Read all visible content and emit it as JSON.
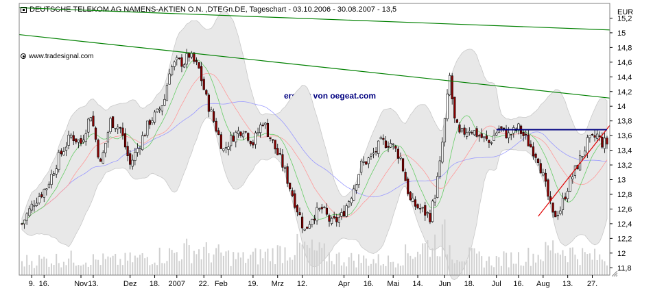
{
  "header": {
    "title": "DEUTSCHE TELEKOM AG NAMENS-AKTIEN O.N. ,DTEGn.DE, Tageschart - 03.10.2006 - 30.08.2007 - 13,5"
  },
  "source": {
    "label": "www.tradesignal.com"
  },
  "annotation": {
    "text": "erstellt von oegeat.com"
  },
  "colors": {
    "candle_up": "#ffffff",
    "candle_down": "#8b0000",
    "band_fill": "#e8e8e8",
    "trend_green": "#008000",
    "trend_red": "#e00000",
    "resistance": "#000080",
    "ma_fast": "#66cc66",
    "ma_mid": "#ff9999",
    "ma_slow": "#9999ff",
    "volume": "#d0d0d0"
  },
  "chart_data": {
    "type": "candlestick",
    "title": "DEUTSCHE TELEKOM AG NAMENS-AKTIEN O.N. ,DTEGn.DE, Tageschart - 03.10.2006 - 30.08.2007 - 13,5",
    "currency_label": "EUR",
    "y_axis_side": "right",
    "ylim": [
      11.7,
      15.4
    ],
    "y_ticks": [
      "15,2",
      "15",
      "14,8",
      "14,6",
      "14,4",
      "14,2",
      "14",
      "13,8",
      "13,6",
      "13,4",
      "13,2",
      "13",
      "12,8",
      "12,6",
      "12,4",
      "12,2",
      "12",
      "11,8"
    ],
    "y_tick_values": [
      15.2,
      15.0,
      14.8,
      14.6,
      14.4,
      14.2,
      14.0,
      13.8,
      13.6,
      13.4,
      13.2,
      13.0,
      12.8,
      12.6,
      12.4,
      12.2,
      12.0,
      11.8
    ],
    "x_ticks": [
      "9.",
      "16.",
      "Nov",
      "13.",
      "Dez",
      "18.",
      "2007",
      "22.",
      "Feb",
      "19.",
      "Mrz",
      "12.",
      "Apr",
      "16.",
      "Mai",
      "14.",
      "Jun",
      "18.",
      "Jul",
      "16.",
      "Aug",
      "13.",
      "27."
    ],
    "x_tick_index": [
      4,
      9,
      24,
      29,
      44,
      54,
      63,
      74,
      81,
      94,
      104,
      114,
      131,
      141,
      151,
      161,
      172,
      182,
      193,
      202,
      212,
      222,
      232
    ],
    "n_bars": 239,
    "close_anchors": [
      [
        0,
        12.4
      ],
      [
        5,
        12.7
      ],
      [
        10,
        12.9
      ],
      [
        15,
        13.3
      ],
      [
        20,
        13.6
      ],
      [
        24,
        13.5
      ],
      [
        28,
        13.9
      ],
      [
        32,
        13.2
      ],
      [
        36,
        13.8
      ],
      [
        40,
        13.7
      ],
      [
        44,
        13.2
      ],
      [
        48,
        13.5
      ],
      [
        52,
        13.8
      ],
      [
        55,
        13.9
      ],
      [
        58,
        14.1
      ],
      [
        60,
        14.5
      ],
      [
        63,
        14.6
      ],
      [
        66,
        14.6
      ],
      [
        68,
        14.7
      ],
      [
        72,
        14.5
      ],
      [
        75,
        14.1
      ],
      [
        78,
        13.8
      ],
      [
        82,
        13.4
      ],
      [
        86,
        13.6
      ],
      [
        90,
        13.7
      ],
      [
        94,
        13.5
      ],
      [
        98,
        13.8
      ],
      [
        102,
        13.5
      ],
      [
        106,
        13.2
      ],
      [
        110,
        12.8
      ],
      [
        113,
        12.5
      ],
      [
        115,
        12.3
      ],
      [
        118,
        12.5
      ],
      [
        122,
        12.6
      ],
      [
        126,
        12.4
      ],
      [
        130,
        12.5
      ],
      [
        134,
        12.8
      ],
      [
        138,
        13.2
      ],
      [
        142,
        13.3
      ],
      [
        146,
        13.5
      ],
      [
        150,
        13.5
      ],
      [
        154,
        13.3
      ],
      [
        158,
        12.7
      ],
      [
        162,
        12.6
      ],
      [
        166,
        12.5
      ],
      [
        168,
        12.8
      ],
      [
        170,
        13.2
      ],
      [
        172,
        13.8
      ],
      [
        174,
        14.4
      ],
      [
        176,
        13.8
      ],
      [
        178,
        13.6
      ],
      [
        182,
        13.7
      ],
      [
        186,
        13.6
      ],
      [
        190,
        13.5
      ],
      [
        194,
        13.7
      ],
      [
        198,
        13.6
      ],
      [
        202,
        13.7
      ],
      [
        206,
        13.5
      ],
      [
        210,
        13.3
      ],
      [
        213,
        12.9
      ],
      [
        216,
        12.5
      ],
      [
        219,
        12.6
      ],
      [
        222,
        12.9
      ],
      [
        226,
        13.2
      ],
      [
        230,
        13.5
      ],
      [
        234,
        13.6
      ],
      [
        236,
        13.5
      ],
      [
        238,
        13.5
      ]
    ],
    "volume_anchors": [
      [
        0,
        0.3
      ],
      [
        20,
        0.35
      ],
      [
        40,
        0.3
      ],
      [
        60,
        0.45
      ],
      [
        68,
        0.55
      ],
      [
        90,
        0.35
      ],
      [
        110,
        0.55
      ],
      [
        113,
        0.6
      ],
      [
        130,
        0.35
      ],
      [
        150,
        0.3
      ],
      [
        172,
        0.8
      ],
      [
        175,
        0.5
      ],
      [
        190,
        0.3
      ],
      [
        212,
        0.45
      ],
      [
        216,
        0.6
      ],
      [
        230,
        0.4
      ],
      [
        238,
        0.35
      ]
    ],
    "trendlines": [
      {
        "name": "upper_long",
        "color": "#008000",
        "from": [
          -8,
          15.35
        ],
        "to": [
          270,
          15.0
        ]
      },
      {
        "name": "lower_long",
        "color": "#008000",
        "from": [
          -8,
          15.0
        ],
        "to": [
          270,
          14.0
        ]
      },
      {
        "name": "support",
        "color": "#e00000",
        "from": [
          210,
          12.5
        ],
        "to": [
          277,
          15.35
        ]
      },
      {
        "name": "resistance",
        "color": "#000080",
        "from": [
          193,
          13.68
        ],
        "to": [
          238,
          13.68
        ]
      }
    ],
    "grid": false,
    "legend": "none"
  }
}
